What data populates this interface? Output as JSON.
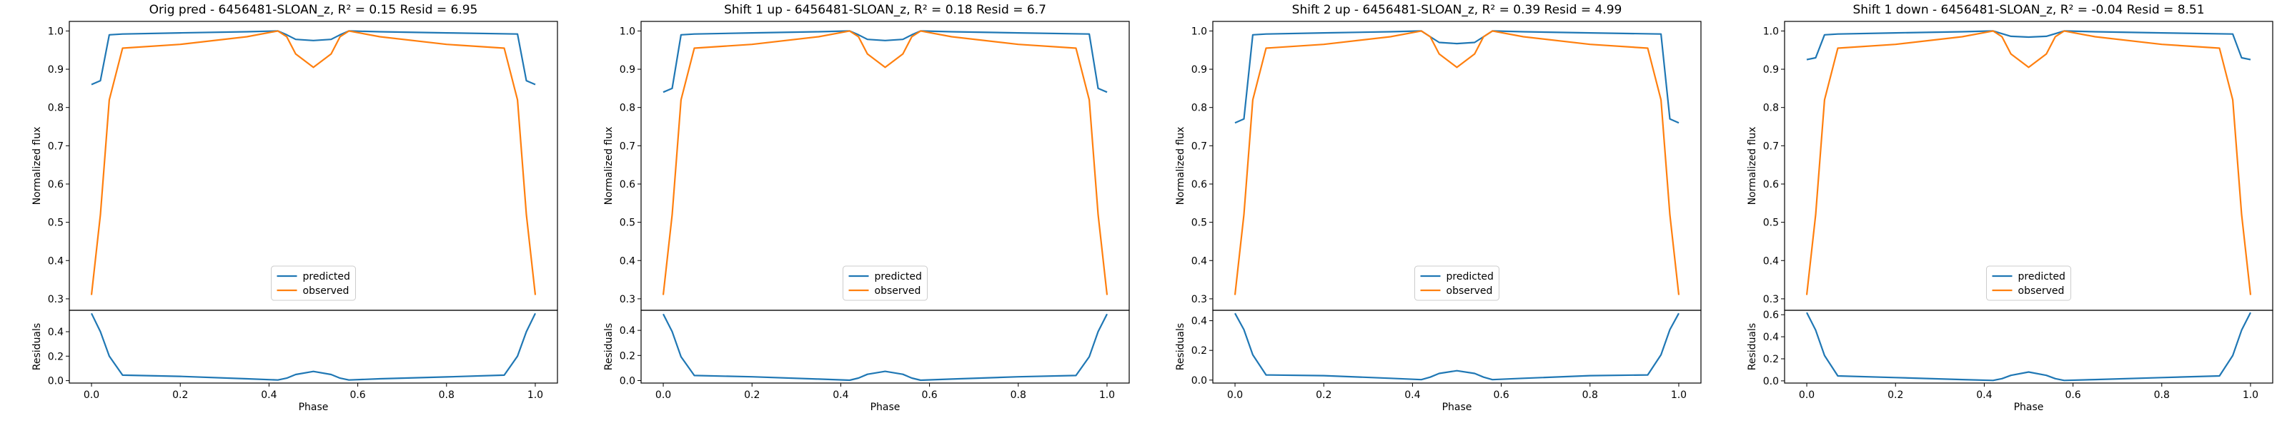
{
  "colors": {
    "predicted": "#1f77b4",
    "observed": "#ff7f0e",
    "axis": "#000000"
  },
  "labels": {
    "ylabel_top": "Normalized flux",
    "ylabel_bottom": "Residuals",
    "xlabel": "Phase",
    "legend": [
      "predicted",
      "observed"
    ]
  },
  "chart_data": [
    {
      "type": "line",
      "title": "Orig pred - 6456481-SLOAN_z, R² = 0.15 Resid = 6.95",
      "xlabel": "Phase",
      "ylabel": "Normalized flux",
      "xlim": [
        -0.05,
        1.05
      ],
      "ylim": [
        0.27,
        1.025
      ],
      "xticks": [
        "0.0",
        "0.2",
        "0.4",
        "0.6",
        "0.8",
        "1.0"
      ],
      "yticks": [
        "0.3",
        "0.4",
        "0.5",
        "0.6",
        "0.7",
        "0.8",
        "0.9",
        "1.0"
      ],
      "legend": "lower center",
      "series": [
        {
          "name": "predicted",
          "x": [
            0.0,
            0.02,
            0.04,
            0.07,
            0.2,
            0.35,
            0.42,
            0.44,
            0.46,
            0.5,
            0.54,
            0.56,
            0.58,
            0.65,
            0.8,
            0.96,
            0.98,
            1.0
          ],
          "y": [
            0.86,
            0.87,
            0.99,
            0.992,
            0.995,
            0.998,
            1.0,
            0.99,
            0.978,
            0.975,
            0.978,
            0.99,
            1.0,
            0.998,
            0.995,
            0.992,
            0.87,
            0.86
          ]
        },
        {
          "name": "observed",
          "x": [
            0.0,
            0.02,
            0.04,
            0.07,
            0.2,
            0.35,
            0.42,
            0.44,
            0.46,
            0.5,
            0.54,
            0.56,
            0.58,
            0.65,
            0.8,
            0.93,
            0.96,
            0.98,
            1.0
          ],
          "y": [
            0.31,
            0.52,
            0.82,
            0.955,
            0.965,
            0.985,
            1.0,
            0.985,
            0.94,
            0.905,
            0.94,
            0.985,
            1.0,
            0.985,
            0.965,
            0.955,
            0.82,
            0.52,
            0.31
          ]
        }
      ],
      "residuals": {
        "ylim": [
          -0.02,
          0.575
        ],
        "yticks": [
          "0.0",
          "0.2",
          "0.4"
        ],
        "x": [
          0.0,
          0.02,
          0.04,
          0.07,
          0.2,
          0.35,
          0.42,
          0.44,
          0.46,
          0.5,
          0.54,
          0.56,
          0.58,
          0.65,
          0.8,
          0.93,
          0.96,
          0.98,
          1.0
        ],
        "y": [
          0.55,
          0.4,
          0.2,
          0.045,
          0.035,
          0.015,
          0.005,
          0.02,
          0.05,
          0.075,
          0.05,
          0.02,
          0.005,
          0.015,
          0.03,
          0.045,
          0.2,
          0.4,
          0.55
        ]
      }
    },
    {
      "type": "line",
      "title": "Shift 1 up - 6456481-SLOAN_z, R² = 0.18 Resid = 6.7",
      "xlabel": "Phase",
      "ylabel": "Normalized flux",
      "xlim": [
        -0.05,
        1.05
      ],
      "ylim": [
        0.27,
        1.025
      ],
      "xticks": [
        "0.0",
        "0.2",
        "0.4",
        "0.6",
        "0.8",
        "1.0"
      ],
      "yticks": [
        "0.3",
        "0.4",
        "0.5",
        "0.6",
        "0.7",
        "0.8",
        "0.9",
        "1.0"
      ],
      "legend": "lower center",
      "series": [
        {
          "name": "predicted",
          "x": [
            0.0,
            0.02,
            0.04,
            0.07,
            0.2,
            0.35,
            0.42,
            0.44,
            0.46,
            0.5,
            0.54,
            0.56,
            0.58,
            0.65,
            0.8,
            0.96,
            0.98,
            1.0
          ],
          "y": [
            0.84,
            0.85,
            0.99,
            0.992,
            0.995,
            0.998,
            1.0,
            0.99,
            0.978,
            0.975,
            0.978,
            0.99,
            1.0,
            0.998,
            0.995,
            0.992,
            0.85,
            0.84
          ]
        },
        {
          "name": "observed",
          "x": [
            0.0,
            0.02,
            0.04,
            0.07,
            0.2,
            0.35,
            0.42,
            0.44,
            0.46,
            0.5,
            0.54,
            0.56,
            0.58,
            0.65,
            0.8,
            0.93,
            0.96,
            0.98,
            1.0
          ],
          "y": [
            0.31,
            0.52,
            0.82,
            0.955,
            0.965,
            0.985,
            1.0,
            0.985,
            0.94,
            0.905,
            0.94,
            0.985,
            1.0,
            0.985,
            0.965,
            0.955,
            0.82,
            0.52,
            0.31
          ]
        }
      ],
      "residuals": {
        "ylim": [
          -0.02,
          0.56
        ],
        "yticks": [
          "0.0",
          "0.2",
          "0.4"
        ],
        "x": [
          0.0,
          0.02,
          0.04,
          0.07,
          0.2,
          0.35,
          0.42,
          0.44,
          0.46,
          0.5,
          0.54,
          0.56,
          0.58,
          0.65,
          0.8,
          0.93,
          0.96,
          0.98,
          1.0
        ],
        "y": [
          0.53,
          0.39,
          0.19,
          0.04,
          0.03,
          0.012,
          0.003,
          0.02,
          0.05,
          0.073,
          0.05,
          0.02,
          0.003,
          0.012,
          0.03,
          0.04,
          0.19,
          0.39,
          0.53
        ]
      }
    },
    {
      "type": "line",
      "title": "Shift 2 up - 6456481-SLOAN_z, R² = 0.39 Resid = 4.99",
      "xlabel": "Phase",
      "ylabel": "Normalized flux",
      "xlim": [
        -0.05,
        1.05
      ],
      "ylim": [
        0.27,
        1.025
      ],
      "xticks": [
        "0.0",
        "0.2",
        "0.4",
        "0.6",
        "0.8",
        "1.0"
      ],
      "yticks": [
        "0.3",
        "0.4",
        "0.5",
        "0.6",
        "0.7",
        "0.8",
        "0.9",
        "1.0"
      ],
      "legend": "lower center",
      "series": [
        {
          "name": "predicted",
          "x": [
            0.0,
            0.02,
            0.04,
            0.07,
            0.2,
            0.35,
            0.42,
            0.44,
            0.46,
            0.5,
            0.54,
            0.56,
            0.58,
            0.65,
            0.8,
            0.96,
            0.98,
            1.0
          ],
          "y": [
            0.76,
            0.77,
            0.99,
            0.992,
            0.995,
            0.998,
            1.0,
            0.985,
            0.97,
            0.967,
            0.97,
            0.985,
            1.0,
            0.998,
            0.995,
            0.992,
            0.77,
            0.76
          ]
        },
        {
          "name": "observed",
          "x": [
            0.0,
            0.02,
            0.04,
            0.07,
            0.2,
            0.35,
            0.42,
            0.44,
            0.46,
            0.5,
            0.54,
            0.56,
            0.58,
            0.65,
            0.8,
            0.93,
            0.96,
            0.98,
            1.0
          ],
          "y": [
            0.31,
            0.52,
            0.82,
            0.955,
            0.965,
            0.985,
            1.0,
            0.985,
            0.94,
            0.905,
            0.94,
            0.985,
            1.0,
            0.985,
            0.965,
            0.955,
            0.82,
            0.52,
            0.31
          ]
        }
      ],
      "residuals": {
        "ylim": [
          -0.02,
          0.47
        ],
        "yticks": [
          "0.0",
          "0.2",
          "0.4"
        ],
        "x": [
          0.0,
          0.02,
          0.04,
          0.07,
          0.2,
          0.35,
          0.42,
          0.44,
          0.46,
          0.5,
          0.54,
          0.56,
          0.58,
          0.65,
          0.8,
          0.93,
          0.96,
          0.98,
          1.0
        ],
        "y": [
          0.45,
          0.34,
          0.17,
          0.035,
          0.03,
          0.012,
          0.003,
          0.02,
          0.045,
          0.063,
          0.045,
          0.02,
          0.003,
          0.012,
          0.03,
          0.035,
          0.17,
          0.34,
          0.45
        ]
      }
    },
    {
      "type": "line",
      "title": "Shift 1 down - 6456481-SLOAN_z, R² = -0.04 Resid = 8.51",
      "xlabel": "Phase",
      "ylabel": "Normalized flux",
      "xlim": [
        -0.05,
        1.05
      ],
      "ylim": [
        0.27,
        1.025
      ],
      "xticks": [
        "0.0",
        "0.2",
        "0.4",
        "0.6",
        "0.8",
        "1.0"
      ],
      "yticks": [
        "0.3",
        "0.4",
        "0.5",
        "0.6",
        "0.7",
        "0.8",
        "0.9",
        "1.0"
      ],
      "legend": "lower center",
      "series": [
        {
          "name": "predicted",
          "x": [
            0.0,
            0.02,
            0.04,
            0.07,
            0.2,
            0.35,
            0.42,
            0.44,
            0.46,
            0.5,
            0.54,
            0.56,
            0.58,
            0.65,
            0.8,
            0.96,
            0.98,
            1.0
          ],
          "y": [
            0.925,
            0.93,
            0.99,
            0.992,
            0.995,
            0.998,
            1.0,
            0.993,
            0.986,
            0.984,
            0.986,
            0.993,
            1.0,
            0.998,
            0.995,
            0.992,
            0.93,
            0.925
          ]
        },
        {
          "name": "observed",
          "x": [
            0.0,
            0.02,
            0.04,
            0.07,
            0.2,
            0.35,
            0.42,
            0.44,
            0.46,
            0.5,
            0.54,
            0.56,
            0.58,
            0.65,
            0.8,
            0.93,
            0.96,
            0.98,
            1.0
          ],
          "y": [
            0.31,
            0.52,
            0.82,
            0.955,
            0.965,
            0.985,
            1.0,
            0.985,
            0.94,
            0.905,
            0.94,
            0.985,
            1.0,
            0.985,
            0.965,
            0.955,
            0.82,
            0.52,
            0.31
          ]
        }
      ],
      "residuals": {
        "ylim": [
          -0.02,
          0.64
        ],
        "yticks": [
          "0.0",
          "0.2",
          "0.4",
          "0.6"
        ],
        "x": [
          0.0,
          0.02,
          0.04,
          0.07,
          0.2,
          0.35,
          0.42,
          0.44,
          0.46,
          0.5,
          0.54,
          0.56,
          0.58,
          0.65,
          0.8,
          0.93,
          0.96,
          0.98,
          1.0
        ],
        "y": [
          0.62,
          0.46,
          0.23,
          0.045,
          0.03,
          0.012,
          0.004,
          0.02,
          0.05,
          0.08,
          0.05,
          0.02,
          0.004,
          0.012,
          0.03,
          0.045,
          0.23,
          0.46,
          0.62
        ]
      }
    }
  ]
}
